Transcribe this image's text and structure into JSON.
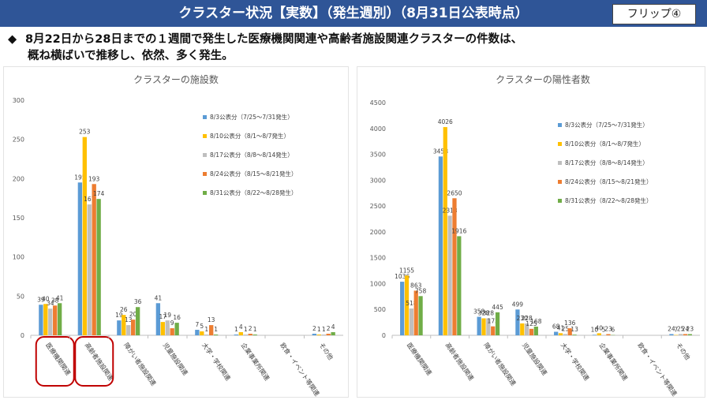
{
  "header": {
    "title": "クラスター状況【実数】（発生週別）（8月31日公表時点）",
    "badge": "フリップ④"
  },
  "summary": {
    "bullet_mark": "◆",
    "line1": "8月22日から28日までの１週間で発生した医療機関関連や高齢者施設関連クラスターの件数は、",
    "line2": "概ね横ばいで推移し、依然、多く発生。"
  },
  "colors": {
    "header_bg": "#2f5597",
    "series": [
      "#5b9bd5",
      "#ffc000",
      "#bfbfbf",
      "#ed7d31",
      "#70ad47"
    ],
    "highlight_circle": "#c00000"
  },
  "chart_data": [
    {
      "type": "bar",
      "title": "クラスターの施設数",
      "categories": [
        "医療機関関連",
        "高齢者施設関連",
        "障がい者施設関連",
        "児童施設関連",
        "大学・学校関連",
        "企業事業所関連",
        "飲食・イベント等関連",
        "その他"
      ],
      "ylim": [
        0,
        300
      ],
      "yticks": [
        0,
        50,
        100,
        150,
        200,
        250,
        300
      ],
      "grid": false,
      "legend_position": "right",
      "highlighted_categories": [
        "医療機関関連",
        "高齢者施設関連"
      ],
      "series": [
        {
          "name": "8/3公表分（7/25〜7/31発生）",
          "values": [
            39,
            195,
            19,
            41,
            7,
            1,
            0,
            2
          ]
        },
        {
          "name": "8/10公表分（8/1〜8/7発生）",
          "values": [
            40,
            253,
            26,
            17,
            5,
            4,
            0,
            1
          ]
        },
        {
          "name": "8/17公表分（8/8〜8/14発生）",
          "values": [
            34,
            167,
            13,
            19,
            1,
            1,
            0,
            1
          ]
        },
        {
          "name": "8/24公表分（8/15〜8/21発生）",
          "values": [
            38,
            193,
            20,
            9,
            13,
            2,
            0,
            2
          ]
        },
        {
          "name": "8/31公表分（8/22〜8/28発生）",
          "values": [
            41,
            174,
            36,
            16,
            1,
            1,
            0,
            4
          ]
        }
      ]
    },
    {
      "type": "bar",
      "title": "クラスターの陽性者数",
      "categories": [
        "医療機関関連",
        "高齢者施設関連",
        "障がい者施設関連",
        "児童施設関連",
        "大学・学校関連",
        "企業事業所関連",
        "飲食・イベント等関連",
        "その他"
      ],
      "ylim": [
        0,
        4500
      ],
      "yticks": [
        0,
        500,
        1000,
        1500,
        2000,
        2500,
        3000,
        3500,
        4000,
        4500
      ],
      "grid": false,
      "legend_position": "right",
      "series": [
        {
          "name": "8/3公表分（7/25〜7/31発生）",
          "values": [
            1036,
            3458,
            358,
            499,
            68,
            10,
            0,
            24
          ]
        },
        {
          "name": "8/10公表分（8/1〜8/7発生）",
          "values": [
            1155,
            4026,
            328,
            230,
            41,
            40,
            0,
            7
          ]
        },
        {
          "name": "8/17公表分（8/8〜8/14発生）",
          "values": [
            518,
            2313,
            328,
            228,
            25,
            5,
            0,
            25
          ]
        },
        {
          "name": "8/24公表分（8/15〜8/21発生）",
          "values": [
            863,
            2650,
            173,
            125,
            136,
            23,
            0,
            24
          ]
        },
        {
          "name": "8/31公表分（8/22〜8/28発生）",
          "values": [
            758,
            1916,
            445,
            168,
            13,
            6,
            0,
            23
          ]
        }
      ]
    }
  ]
}
